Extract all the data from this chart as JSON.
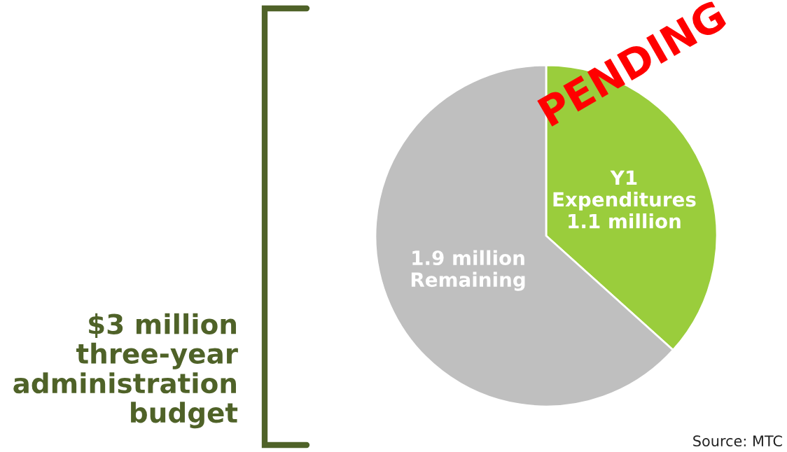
{
  "chart_data": {
    "type": "pie",
    "categories": [
      "Y1\nExpenditures\n1.1 million",
      "1.9 million\nRemaining"
    ],
    "values": [
      1.1,
      1.9
    ],
    "colors": [
      "#9acd3c",
      "#bfbfbf"
    ],
    "annotations": [
      "$3 million\nthree-year\nadministration\nbudget",
      "PENDING",
      "Source: MTC"
    ]
  }
}
